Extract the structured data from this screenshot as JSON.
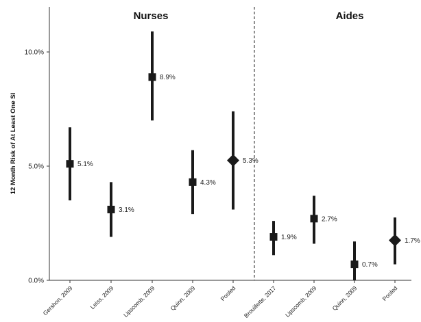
{
  "chart_data": {
    "type": "scatter",
    "subtype": "forest-plot",
    "ylabel": "12 Month Risk of At Least One SI",
    "ylim": [
      0,
      0.12
    ],
    "yticks": [
      {
        "value": 0.0,
        "label": "0.0%"
      },
      {
        "value": 0.05,
        "label": "5.0%"
      },
      {
        "value": 0.1,
        "label": "10.0%"
      }
    ],
    "grid": false,
    "legend": "none",
    "colors": {
      "marker": "#1a1a1a",
      "axis": "#333333"
    },
    "groups": [
      {
        "name": "Nurses",
        "points": [
          {
            "label": "Gershon, 2009",
            "value": 0.051,
            "lower": 0.035,
            "upper": 0.067,
            "value_label": "5.1%",
            "marker": "square"
          },
          {
            "label": "Leiss, 2009",
            "value": 0.031,
            "lower": 0.019,
            "upper": 0.043,
            "value_label": "3.1%",
            "marker": "square"
          },
          {
            "label": "Lipscomb, 2009",
            "value": 0.089,
            "lower": 0.07,
            "upper": 0.109,
            "value_label": "8.9%",
            "marker": "square"
          },
          {
            "label": "Quinn, 2009",
            "value": 0.043,
            "lower": 0.029,
            "upper": 0.057,
            "value_label": "4.3%",
            "marker": "square"
          },
          {
            "label": "Pooled",
            "value": 0.0525,
            "lower": 0.031,
            "upper": 0.074,
            "value_label": "5.3%",
            "marker": "diamond"
          }
        ]
      },
      {
        "name": "Aides",
        "points": [
          {
            "label": "Brouillette, 2017",
            "value": 0.019,
            "lower": 0.011,
            "upper": 0.026,
            "value_label": "1.9%",
            "marker": "square"
          },
          {
            "label": "Lipscomb, 2009",
            "value": 0.027,
            "lower": 0.016,
            "upper": 0.037,
            "value_label": "2.7%",
            "marker": "square"
          },
          {
            "label": "Quinn, 2009",
            "value": 0.007,
            "lower": 0.0,
            "upper": 0.017,
            "value_label": "0.7%",
            "marker": "square"
          },
          {
            "label": "Pooled",
            "value": 0.0175,
            "lower": 0.007,
            "upper": 0.0275,
            "value_label": "1.7%",
            "marker": "diamond"
          }
        ]
      }
    ]
  }
}
